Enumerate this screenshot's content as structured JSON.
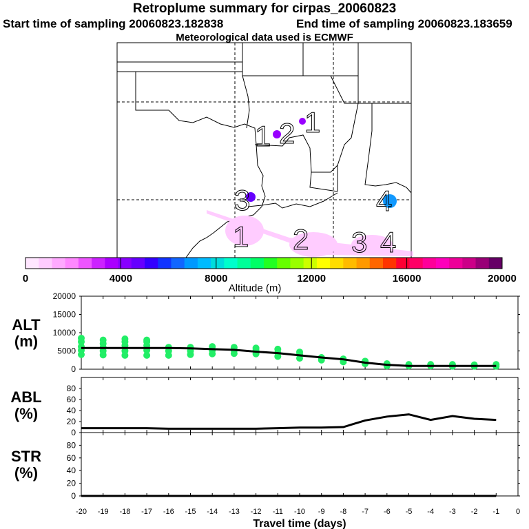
{
  "header": {
    "title": "Retroplume summary for cirpas_20060823",
    "start": "Start time of sampling 20060823.182838",
    "end": "End time of sampling 20060823.183659",
    "met": "Meteorological data used is ECMWF"
  },
  "colorbar": {
    "label": "Altitude (m)",
    "ticks": [
      "0",
      "4000",
      "8000",
      "12000",
      "16000",
      "20000"
    ],
    "colors": [
      "#ffe6ff",
      "#ffccff",
      "#ffaaff",
      "#ff88ff",
      "#ee55ff",
      "#cc22ff",
      "#aa00ff",
      "#8800ff",
      "#6600ff",
      "#3300ff",
      "#1133ff",
      "#1166ff",
      "#0099ff",
      "#00bbff",
      "#00dddd",
      "#00ffcc",
      "#00ff99",
      "#00ff66",
      "#22ff22",
      "#66ff00",
      "#99ff00",
      "#ccff00",
      "#ffff00",
      "#ffdd00",
      "#ffbb00",
      "#ff9900",
      "#ff6600",
      "#ff3300",
      "#ff0033",
      "#ff0066",
      "#ff0099",
      "#ff00bb",
      "#ee0099",
      "#cc0088",
      "#990077",
      "#660066"
    ]
  },
  "map": {
    "labels": [
      {
        "text": "1"
      },
      {
        "text": "2"
      },
      {
        "text": "1"
      },
      {
        "text": "3"
      },
      {
        "text": "4"
      },
      {
        "text": "2"
      },
      {
        "text": "3"
      },
      {
        "text": "4"
      }
    ]
  },
  "chart_data": [
    {
      "type": "line",
      "name": "altitude",
      "ylabel": "ALT\n(m)",
      "ylabel_lines": [
        "ALT",
        "(m)"
      ],
      "ylim": [
        0,
        20000
      ],
      "yticks": [
        0,
        5000,
        10000,
        15000,
        20000
      ],
      "xlim": [
        -20,
        0
      ],
      "x": [
        -20,
        -19,
        -18,
        -17,
        -16,
        -15,
        -14,
        -13,
        -12,
        -11,
        -10,
        -9,
        -8,
        -7,
        -6,
        -5,
        -4,
        -3,
        -2,
        -1
      ],
      "mean": [
        5800,
        5800,
        5800,
        5800,
        5800,
        5700,
        5500,
        5300,
        4800,
        4400,
        3800,
        3200,
        2700,
        1800,
        1200,
        900,
        900,
        900,
        900,
        900
      ],
      "points": [
        [
          -20,
          [
            4000,
            5200,
            6200,
            7500,
            8500
          ]
        ],
        [
          -19,
          [
            3900,
            5000,
            6000,
            7000,
            8000
          ]
        ],
        [
          -18,
          [
            3800,
            5000,
            6500,
            7500,
            8300
          ]
        ],
        [
          -17,
          [
            3800,
            5200,
            6500,
            7500,
            8000
          ]
        ],
        [
          -16,
          [
            3800,
            5000,
            6000
          ]
        ],
        [
          -15,
          [
            4000,
            5000,
            6000
          ]
        ],
        [
          -14,
          [
            4200,
            5200,
            6200
          ]
        ],
        [
          -13,
          [
            4300,
            5200,
            6000
          ]
        ],
        [
          -12,
          [
            4200,
            5200,
            5800
          ]
        ],
        [
          -11,
          [
            3500,
            4500,
            5500
          ]
        ],
        [
          -10,
          [
            3000,
            4000,
            4700
          ]
        ],
        [
          -9,
          [
            2500,
            3200
          ]
        ],
        [
          -8,
          [
            2000,
            2800
          ]
        ],
        [
          -7,
          [
            1500,
            2200
          ]
        ],
        [
          -6,
          [
            900,
            1500
          ]
        ],
        [
          -5,
          [
            900,
            1300
          ]
        ],
        [
          -4,
          [
            900,
            1300
          ]
        ],
        [
          -3,
          [
            800,
            1300
          ]
        ],
        [
          -2,
          [
            800,
            1200
          ]
        ],
        [
          -1,
          [
            800,
            1300
          ]
        ]
      ]
    },
    {
      "type": "line",
      "name": "abl",
      "ylabel_lines": [
        "ABL",
        "(%)"
      ],
      "ylim": [
        0,
        100
      ],
      "yticks": [
        0,
        20,
        40,
        60,
        80
      ],
      "xlim": [
        -20,
        0
      ],
      "x": [
        -20,
        -19,
        -18,
        -17,
        -16,
        -15,
        -14,
        -13,
        -12,
        -11,
        -10,
        -9,
        -8,
        -7,
        -6,
        -5,
        -4,
        -3,
        -2,
        -1
      ],
      "values": [
        8,
        8,
        8,
        8,
        7,
        7,
        7,
        7,
        7,
        8,
        9,
        9,
        10,
        22,
        29,
        33,
        23,
        30,
        25,
        23
      ]
    },
    {
      "type": "line",
      "name": "str",
      "ylabel_lines": [
        "STR",
        "(%)"
      ],
      "ylim": [
        0,
        100
      ],
      "yticks": [
        0,
        20,
        40,
        60,
        80
      ],
      "xlim": [
        -20,
        0
      ],
      "x": [
        -20,
        -19,
        -18,
        -17,
        -16,
        -15,
        -14,
        -13,
        -12,
        -11,
        -10,
        -9,
        -8,
        -7,
        -6,
        -5,
        -4,
        -3,
        -2,
        -1
      ],
      "values": [
        0,
        0,
        0,
        0,
        0,
        0,
        0,
        0,
        0,
        0,
        0,
        0,
        0,
        0,
        0,
        0,
        0,
        0,
        0,
        0
      ],
      "xlabel": "Travel time (days)",
      "xticks": [
        "-20",
        "-19",
        "-18",
        "-17",
        "-16",
        "-15",
        "-14",
        "-13",
        "-12",
        "-11",
        "-10",
        "-9",
        "-8",
        "-7",
        "-6",
        "-5",
        "-4",
        "-3",
        "-2",
        "-1",
        "0"
      ]
    }
  ]
}
